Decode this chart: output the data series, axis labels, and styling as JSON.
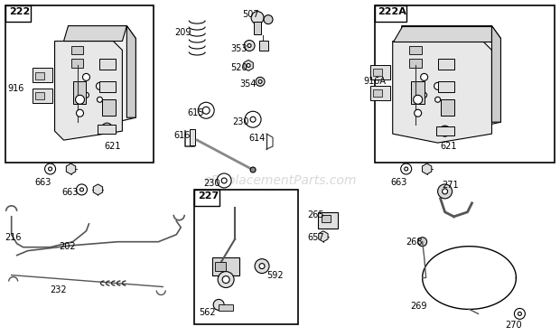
{
  "bg_color": "#ffffff",
  "line_color": "#000000",
  "watermark": "eReplacementParts.com",
  "fig_w": 6.2,
  "fig_h": 3.72,
  "dpi": 100
}
